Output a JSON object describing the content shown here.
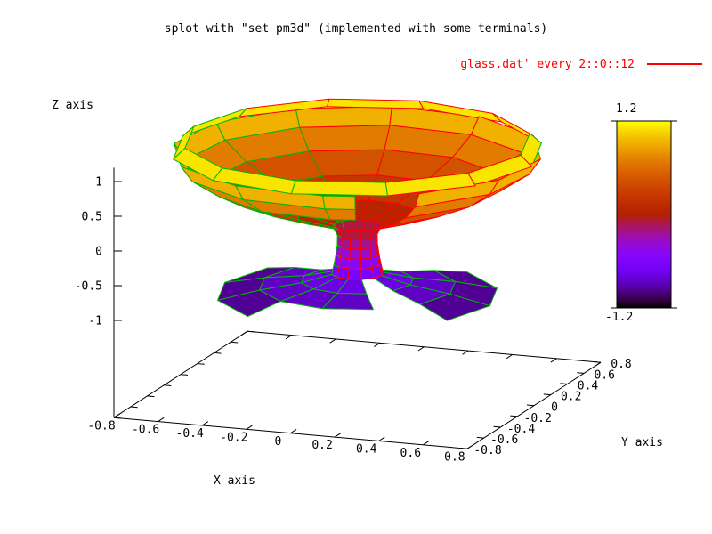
{
  "title": "splot with \"set pm3d\" (implemented with some terminals)",
  "legend": {
    "label": "'glass.dat' every 2::0::12",
    "color": "#ff0000"
  },
  "axes": {
    "x": {
      "label": "X axis",
      "range": [
        -0.8,
        0.8
      ],
      "ticks": [
        -0.8,
        -0.6,
        -0.4,
        -0.2,
        0,
        0.2,
        0.4,
        0.6,
        0.8
      ],
      "tick_labels": [
        "-0.8",
        "-0.6",
        "-0.4",
        "-0.2",
        "0",
        "0.2",
        "0.4",
        "0.6",
        "0.8"
      ]
    },
    "y": {
      "label": "Y axis",
      "range": [
        -0.8,
        0.8
      ],
      "ticks": [
        -0.8,
        -0.6,
        -0.4,
        -0.2,
        0,
        0.2,
        0.4,
        0.6,
        0.8
      ],
      "tick_labels": [
        "-0.8",
        "-0.6",
        "-0.4",
        "-0.2",
        "0",
        "0.2",
        "0.4",
        "0.6",
        "0.8"
      ]
    },
    "z": {
      "label": "Z axis",
      "range": [
        -1.2,
        1.2
      ],
      "ticks": [
        1,
        0.5,
        0,
        -0.5,
        -1
      ],
      "tick_labels": [
        "1",
        "0.5",
        "0",
        "-0.5",
        "-1"
      ]
    }
  },
  "colorbar": {
    "max_label": "1.2",
    "min_label": "-1.2",
    "range": [
      -1.2,
      1.2
    ],
    "palette": "gnuplot pm3d rgbformulae 7,5,15 (black-violet-red-yellow)"
  },
  "colors": {
    "mesh_red": "#ff0000",
    "mesh_green": "#00b400",
    "axis": "#000000",
    "background": "#ffffff",
    "text": "#000000"
  },
  "chart_data": {
    "type": "surface",
    "title": "splot with \"set pm3d\" (implemented with some terminals)",
    "source": "'glass.dat' every 2::0::12",
    "object": "glass (goblet): foot, stem, bowl; pm3d colored by z",
    "zrange_color": [
      -1.2,
      1.2
    ],
    "view": {
      "elevation_deg": 39,
      "azimuth_deg": 291
    },
    "projection": {
      "ox": 401.5,
      "oy": 251,
      "ax": 248.1,
      "ay": 21.9,
      "bx": 93.75,
      "by": -60.6,
      "cz": 78,
      "zbase": -2.4,
      "depth": [
        -0.274,
        0.726,
        -0.629
      ]
    },
    "surface": {
      "segments_deg": 30,
      "profile": [
        [
          0.6,
          -1.02
        ],
        [
          0.42,
          -0.9
        ],
        [
          0.24,
          -0.82
        ],
        [
          0.11,
          -0.72
        ],
        [
          0.1,
          -0.58
        ],
        [
          0.092,
          -0.44
        ],
        [
          0.086,
          -0.3
        ],
        [
          0.085,
          -0.16
        ],
        [
          0.105,
          -0.03
        ],
        [
          0.26,
          0.12
        ],
        [
          0.45,
          0.33
        ],
        [
          0.62,
          0.56
        ],
        [
          0.74,
          0.81
        ],
        [
          0.79,
          1.04
        ],
        [
          0.74,
          1.19
        ]
      ],
      "bands": [
        {
          "rows": [
            0,
            3
          ],
          "theta": [
            [
              150,
              240
            ],
            [
              330,
              420
            ]
          ]
        },
        {
          "rows": [
            1,
            3
          ],
          "theta": [
            [
              240,
              300
            ]
          ]
        },
        {
          "rows": [
            3,
            8
          ],
          "theta": [
            [
              0,
              360
            ]
          ]
        },
        {
          "rows": [
            8,
            11
          ],
          "theta": [
            [
              310,
              600
            ]
          ]
        },
        {
          "rows": [
            11,
            13
          ],
          "theta": [
            [
              310,
              650
            ]
          ]
        },
        {
          "rows": [
            13,
            14
          ],
          "theta": [
            [
              0,
              360
            ]
          ]
        }
      ],
      "foot_max_row": 3,
      "stem_max_row": 8
    }
  }
}
